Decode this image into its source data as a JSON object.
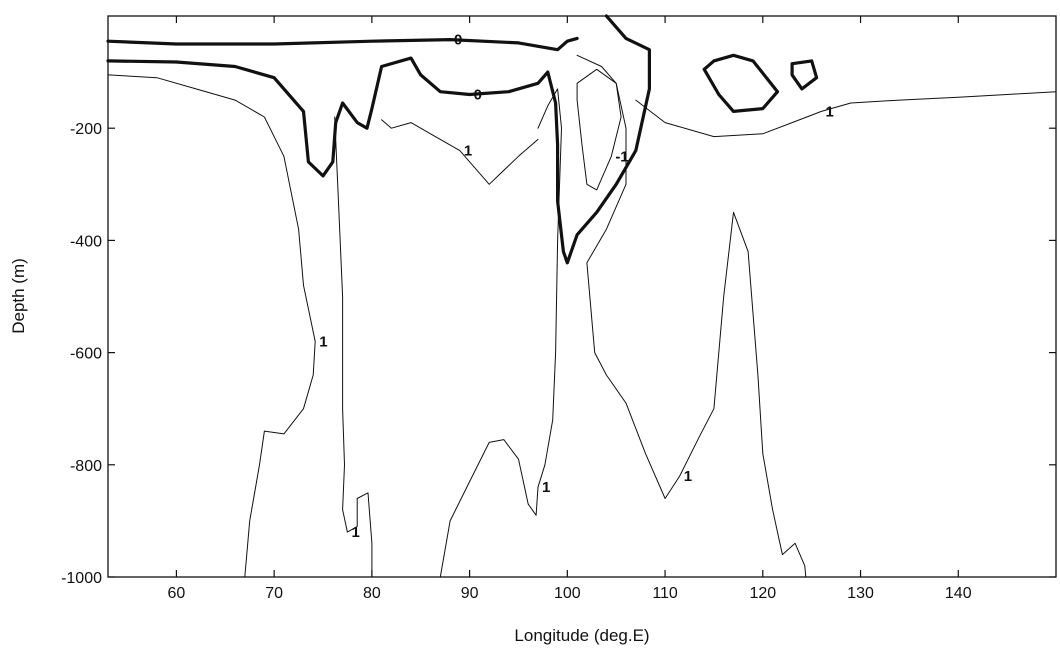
{
  "chart_data": {
    "type": "contour",
    "xlabel": "Longitude (deg.E)",
    "ylabel": "Depth (m)",
    "xlim": [
      53,
      150
    ],
    "ylim": [
      -1000,
      0
    ],
    "x_ticks": [
      60,
      70,
      80,
      90,
      100,
      110,
      120,
      130,
      140
    ],
    "y_ticks": [
      -200,
      -400,
      -600,
      -800,
      -1000
    ],
    "grid": false,
    "contour_levels": [
      -1,
      0,
      1
    ],
    "contours": [
      {
        "level": 0,
        "label": "0",
        "style": "thick",
        "points": [
          [
            53,
            -45
          ],
          [
            60,
            -50
          ],
          [
            70,
            -50
          ],
          [
            80,
            -45
          ],
          [
            88,
            -42
          ],
          [
            95,
            -48
          ],
          [
            99,
            -60
          ],
          [
            100,
            -45
          ],
          [
            101,
            -40
          ]
        ]
      },
      {
        "level": 0,
        "label": "0",
        "style": "thick",
        "points": [
          [
            53,
            -80
          ],
          [
            60,
            -82
          ],
          [
            66,
            -90
          ],
          [
            70,
            -110
          ],
          [
            73,
            -170
          ],
          [
            73.5,
            -260
          ],
          [
            75,
            -285
          ],
          [
            76,
            -260
          ],
          [
            76.3,
            -190
          ],
          [
            77,
            -155
          ],
          [
            78.5,
            -190
          ],
          [
            79.5,
            -200
          ],
          [
            80,
            -165
          ],
          [
            81,
            -90
          ],
          [
            84,
            -75
          ],
          [
            85,
            -105
          ],
          [
            87,
            -135
          ],
          [
            90,
            -140
          ],
          [
            94,
            -135
          ],
          [
            97,
            -120
          ],
          [
            98,
            -100
          ],
          [
            98.8,
            -155
          ],
          [
            99,
            -230
          ],
          [
            99,
            -330
          ],
          [
            99.6,
            -420
          ],
          [
            100,
            -440
          ],
          [
            101,
            -390
          ],
          [
            103,
            -350
          ],
          [
            105,
            -300
          ],
          [
            107,
            -240
          ],
          [
            108.4,
            -130
          ],
          [
            108.4,
            -60
          ],
          [
            106,
            -40
          ],
          [
            104.5,
            -10
          ],
          [
            104,
            0
          ]
        ]
      },
      {
        "level": 0,
        "label": "",
        "style": "thick",
        "points": [
          [
            114,
            -95
          ],
          [
            115,
            -80
          ],
          [
            117,
            -70
          ],
          [
            119,
            -80
          ],
          [
            121.5,
            -135
          ],
          [
            120,
            -165
          ],
          [
            117,
            -170
          ],
          [
            115.5,
            -140
          ],
          [
            114,
            -95
          ]
        ]
      },
      {
        "level": 0,
        "label": "",
        "style": "thick",
        "points": [
          [
            123,
            -85
          ],
          [
            125,
            -80
          ],
          [
            125.5,
            -110
          ],
          [
            124,
            -130
          ],
          [
            123,
            -105
          ],
          [
            123,
            -85
          ]
        ]
      },
      {
        "level": 1,
        "label": "1",
        "style": "thin",
        "points": [
          [
            53,
            -105
          ],
          [
            58,
            -110
          ],
          [
            62,
            -130
          ],
          [
            66,
            -150
          ],
          [
            69,
            -180
          ],
          [
            71,
            -250
          ],
          [
            72.5,
            -380
          ],
          [
            73,
            -480
          ],
          [
            74.2,
            -580
          ],
          [
            74,
            -640
          ],
          [
            73,
            -700
          ],
          [
            71,
            -745
          ],
          [
            69,
            -740
          ],
          [
            68.5,
            -800
          ],
          [
            67.5,
            -900
          ],
          [
            67,
            -1000
          ]
        ]
      },
      {
        "level": 1,
        "label": "1",
        "style": "thin",
        "points": [
          [
            97,
            -200
          ],
          [
            98,
            -160
          ],
          [
            99,
            -130
          ],
          [
            99.4,
            -200
          ],
          [
            99,
            -400
          ],
          [
            98.8,
            -600
          ],
          [
            98.5,
            -720
          ],
          [
            97.7,
            -800
          ],
          [
            97,
            -840
          ],
          [
            96.8,
            -890
          ],
          [
            96,
            -870
          ],
          [
            95,
            -790
          ],
          [
            93.5,
            -755
          ],
          [
            92,
            -760
          ],
          [
            90,
            -830
          ],
          [
            88,
            -900
          ],
          [
            87,
            -1000
          ]
        ]
      },
      {
        "level": 1,
        "label": "1",
        "style": "thin",
        "points": [
          [
            76.2,
            -180
          ],
          [
            76.5,
            -300
          ],
          [
            77,
            -500
          ],
          [
            77,
            -700
          ],
          [
            77.2,
            -800
          ],
          [
            77,
            -880
          ],
          [
            77.5,
            -920
          ],
          [
            78.5,
            -910
          ],
          [
            78.5,
            -860
          ],
          [
            79.6,
            -850
          ],
          [
            80,
            -940
          ],
          [
            80,
            -1000
          ]
        ]
      },
      {
        "level": 1,
        "label": "1",
        "style": "thin",
        "points": [
          [
            81,
            -185
          ],
          [
            82,
            -200
          ],
          [
            84,
            -190
          ],
          [
            86,
            -210
          ],
          [
            89,
            -240
          ],
          [
            92,
            -300
          ],
          [
            95,
            -250
          ],
          [
            97,
            -220
          ]
        ]
      },
      {
        "level": 1,
        "label": "1",
        "style": "thin",
        "points": [
          [
            101,
            -70
          ],
          [
            103.5,
            -90
          ],
          [
            105,
            -120
          ],
          [
            106,
            -200
          ],
          [
            106,
            -300
          ],
          [
            104,
            -380
          ],
          [
            102,
            -440
          ],
          [
            102.8,
            -600
          ],
          [
            104,
            -640
          ],
          [
            106,
            -690
          ],
          [
            108,
            -780
          ],
          [
            110,
            -860
          ],
          [
            111.5,
            -820
          ],
          [
            113.5,
            -750
          ],
          [
            115,
            -700
          ],
          [
            116,
            -500
          ],
          [
            117,
            -350
          ],
          [
            118.5,
            -420
          ],
          [
            119.5,
            -640
          ],
          [
            120,
            -780
          ],
          [
            121,
            -880
          ],
          [
            122,
            -960
          ],
          [
            123.3,
            -940
          ],
          [
            124.3,
            -980
          ],
          [
            124.4,
            -1000
          ]
        ]
      },
      {
        "level": 1,
        "label": "1",
        "style": "thin",
        "points": [
          [
            107,
            -150
          ],
          [
            110,
            -190
          ],
          [
            115,
            -215
          ],
          [
            120,
            -210
          ],
          [
            123,
            -190
          ],
          [
            126,
            -170
          ],
          [
            129,
            -155
          ],
          [
            134,
            -150
          ],
          [
            140,
            -145
          ],
          [
            145,
            -140
          ],
          [
            150,
            -135
          ]
        ]
      },
      {
        "level": -1,
        "label": "-1",
        "style": "thin",
        "points": [
          [
            101,
            -150
          ],
          [
            101,
            -120
          ],
          [
            103,
            -95
          ],
          [
            105,
            -120
          ],
          [
            105.5,
            -180
          ],
          [
            104.5,
            -250
          ],
          [
            103,
            -310
          ],
          [
            102,
            -300
          ],
          [
            101.5,
            -230
          ],
          [
            101,
            -150
          ]
        ]
      }
    ]
  }
}
